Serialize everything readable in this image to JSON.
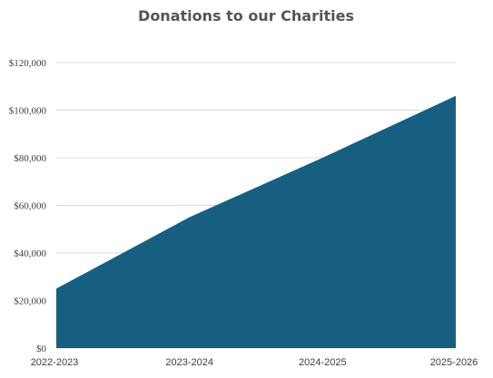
{
  "chart_data": {
    "type": "area",
    "title": "Donations to our Charities",
    "xlabel": "",
    "ylabel": "",
    "categories": [
      "2022-2023",
      "2023-2024",
      "2024-2025",
      "2025-2026"
    ],
    "series": [
      {
        "values": [
          25000,
          55000,
          80000,
          106000
        ]
      }
    ],
    "ylim": [
      0,
      120000
    ],
    "yticks": [
      0,
      20000,
      40000,
      60000,
      80000,
      100000,
      120000
    ],
    "ytick_labels": [
      "$0",
      "$20,000",
      "$40,000",
      "$60,000",
      "$80,000",
      "$100,000",
      "$120,000"
    ],
    "grid": true,
    "legend": "none",
    "colors": {
      "area": "#175f80",
      "grid": "#d9d9d9",
      "title": "#555555",
      "text": "#404040"
    }
  }
}
